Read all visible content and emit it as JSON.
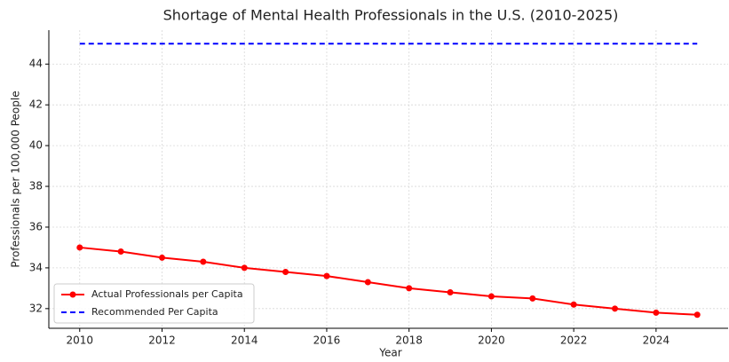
{
  "chart_data": {
    "type": "line",
    "title": "Shortage of Mental Health Professionals in the U.S. (2010-2025)",
    "x_label": "Year",
    "y_label": "Professionals per 100,000 People",
    "x": [
      2010,
      2011,
      2012,
      2013,
      2014,
      2015,
      2016,
      2017,
      2018,
      2019,
      2020,
      2021,
      2022,
      2023,
      2024,
      2025
    ],
    "series": [
      {
        "name": "Actual Professionals per Capita",
        "color": "#ff0000",
        "style": "solid",
        "marker": true,
        "values": [
          35.0,
          34.8,
          34.5,
          34.3,
          34.0,
          33.8,
          33.6,
          33.3,
          33.0,
          32.8,
          32.6,
          32.5,
          32.2,
          32.0,
          31.8,
          31.7
        ]
      },
      {
        "name": "Recommended Per Capita",
        "color": "#0000ff",
        "style": "dashed",
        "marker": false,
        "values": [
          45,
          45,
          45,
          45,
          45,
          45,
          45,
          45,
          45,
          45,
          45,
          45,
          45,
          45,
          45,
          45
        ]
      }
    ],
    "xlim": [
      2009.25,
      2025.75
    ],
    "ylim": [
      31.035,
      45.665
    ],
    "xticks": [
      2010,
      2012,
      2014,
      2016,
      2018,
      2020,
      2022,
      2024
    ],
    "yticks": [
      32,
      34,
      36,
      38,
      40,
      42,
      44
    ],
    "grid": true,
    "legend": "lower left"
  }
}
